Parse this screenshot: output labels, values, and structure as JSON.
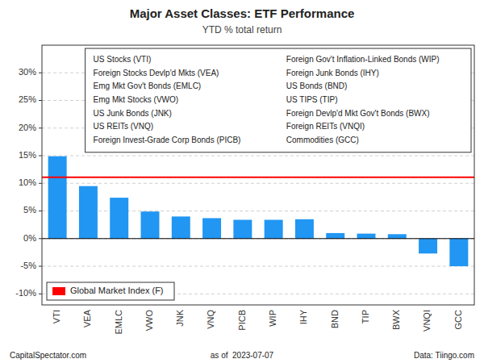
{
  "chart_data": {
    "type": "bar",
    "title": "Major Asset Classes: ETF Performance",
    "subtitle": "YTD % total return",
    "categories": [
      "VTI",
      "VEA",
      "EMLC",
      "VWO",
      "JNK",
      "VNQ",
      "PICB",
      "WIP",
      "IHY",
      "BND",
      "TIP",
      "BWX",
      "VNQI",
      "GCC"
    ],
    "values": [
      14.9,
      9.5,
      7.4,
      4.9,
      4.0,
      3.7,
      3.4,
      3.4,
      3.5,
      1.0,
      0.9,
      0.8,
      -2.7,
      -5.0
    ],
    "color": "#2196F3",
    "reference_line": {
      "value": 11.1,
      "label": "Global Market Index (F)",
      "color": "#FF0000"
    },
    "ylim": [
      -12,
      35
    ],
    "yticks": [
      {
        "value": -10,
        "label": "-10%"
      },
      {
        "value": -5,
        "label": "-5%"
      },
      {
        "value": 0,
        "label": "0%"
      },
      {
        "value": 5,
        "label": "5%"
      },
      {
        "value": 10,
        "label": "10%"
      },
      {
        "value": 15,
        "label": "15%"
      },
      {
        "value": 20,
        "label": "20%"
      },
      {
        "value": 25,
        "label": "25%"
      },
      {
        "value": 30,
        "label": "30%"
      }
    ],
    "grid": true,
    "legend": "lower left",
    "annotations": [
      [
        "US Stocks (VTI)",
        "Foreign Stocks Devlp'd Mkts (VEA)",
        "Emg Mkt Gov't Bonds (EMLC)",
        "Emg Mkt Stocks (VWO)",
        "US Junk Bonds (JNK)",
        "US REITs (VNQ)",
        "Foreign Invest-Grade Corp Bonds (PICB)"
      ],
      [
        "Foreign Gov't Inflation-Linked Bonds (WIP)",
        "Foreign Junk Bonds (IHY)",
        "US Bonds (BND)",
        "US TIPS (TIP)",
        "Foreign Devlp'd Mkt Gov't Bonds (BWX)",
        "Foreign REITs (VNQI)",
        "Commodities (GCC)"
      ]
    ],
    "footer": [
      "CapitalSpectator.com",
      "as of  2023-07-07",
      "Data: Tiingo.com"
    ]
  }
}
